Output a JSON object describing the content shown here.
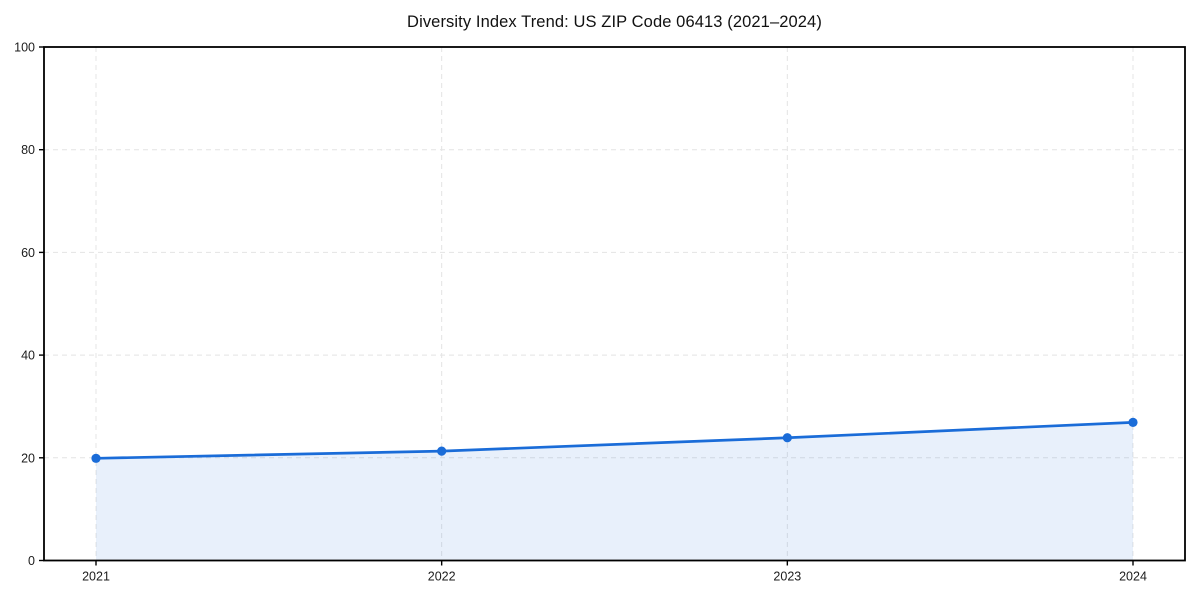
{
  "chart_data": {
    "type": "area",
    "title": "Diversity Index Trend: US ZIP Code 06413 (2021–2024)",
    "categories": [
      "2021",
      "2022",
      "2023",
      "2024"
    ],
    "values": [
      19.9,
      21.3,
      23.9,
      26.9
    ],
    "xlabel": "",
    "ylabel": "",
    "ylim": [
      0,
      100
    ],
    "yticks": [
      0,
      20,
      40,
      60,
      80,
      100
    ],
    "grid": true,
    "grid_style": "dashed",
    "legend": false,
    "marker": "circle",
    "colors": {
      "line": "#1a6cd8",
      "marker": "#1a6cd8",
      "fill": "rgba(26,108,216,0.10)",
      "grid": "#e4e4e4",
      "spine": "#000000",
      "tick_text": "#1c1c1c",
      "background": "#ffffff"
    }
  }
}
